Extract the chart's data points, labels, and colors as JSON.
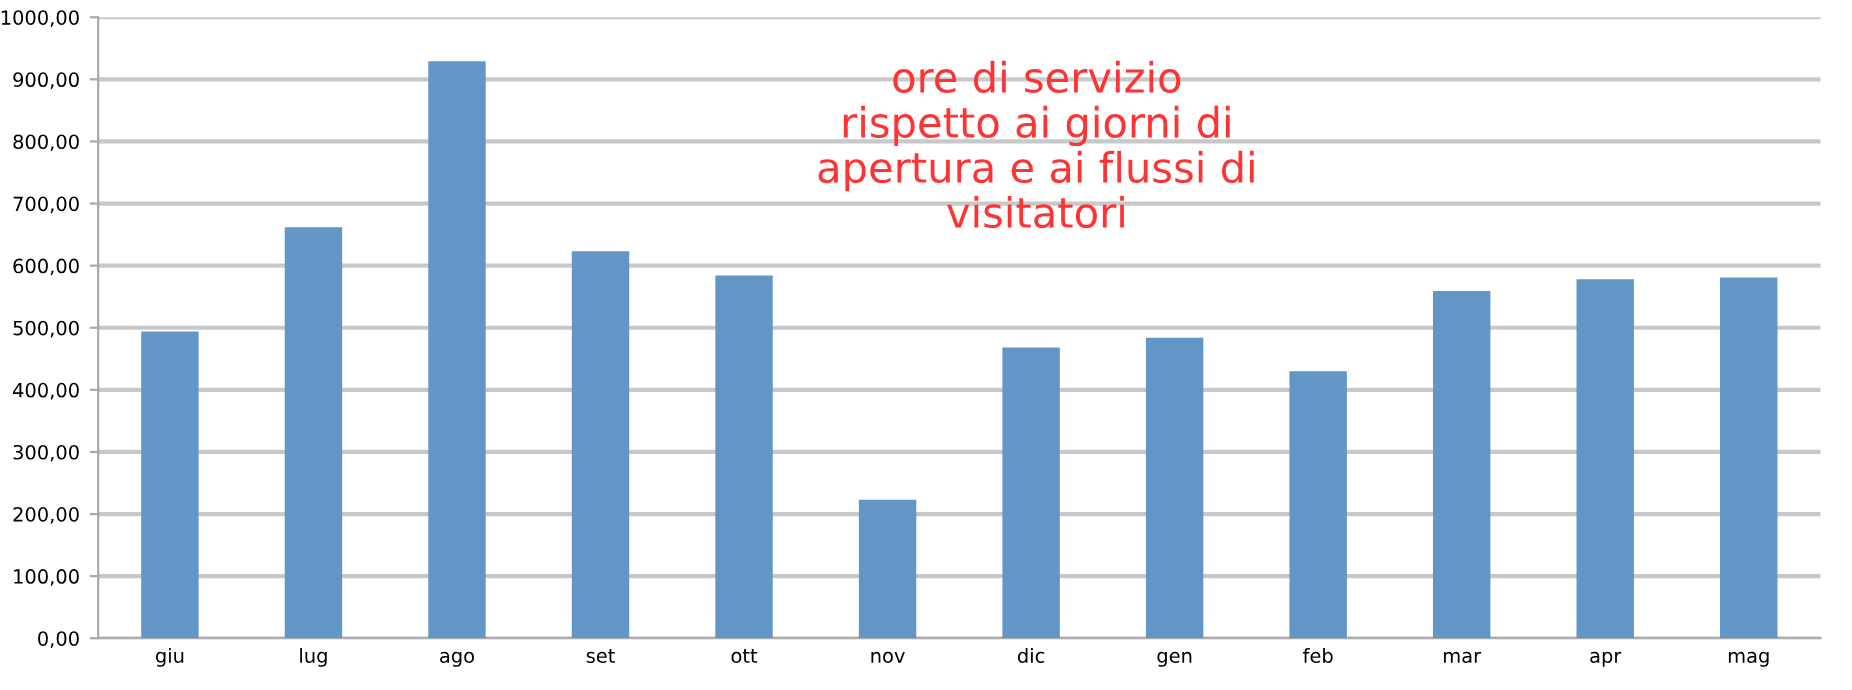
{
  "chart_data": {
    "type": "bar",
    "categories": [
      "giu",
      "lug",
      "ago",
      "set",
      "ott",
      "nov",
      "dic",
      "gen",
      "feb",
      "mar",
      "apr",
      "mag"
    ],
    "values": [
      494,
      662,
      929,
      623,
      584,
      223,
      468,
      484,
      430,
      559,
      578,
      581
    ],
    "color": "#6296c6",
    "annotations": [
      "ore di servizio\nrispetto ai giorni di\napertura e ai flussi di\nvisitatori"
    ],
    "ylim": [
      0,
      1000
    ],
    "yticks": [
      {
        "value": 0,
        "label": "0,00"
      },
      {
        "value": 100,
        "label": "100,00"
      },
      {
        "value": 200,
        "label": "200,00"
      },
      {
        "value": 300,
        "label": "300,00"
      },
      {
        "value": 400,
        "label": "400,00"
      },
      {
        "value": 500,
        "label": "500,00"
      },
      {
        "value": 600,
        "label": "600,00"
      },
      {
        "value": 700,
        "label": "700,00"
      },
      {
        "value": 800,
        "label": "800,00"
      },
      {
        "value": 900,
        "label": "900,00"
      },
      {
        "value": 1000,
        "label": "1000,00"
      }
    ],
    "grid": "y"
  }
}
